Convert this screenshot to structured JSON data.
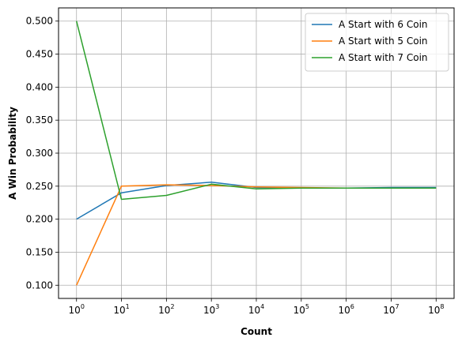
{
  "chart_data": {
    "type": "line",
    "title": "",
    "xlabel": "Count",
    "ylabel": "A Win Probability",
    "x_scale": "log",
    "x": [
      1,
      10,
      100,
      1000,
      10000,
      100000,
      1000000,
      10000000,
      100000000
    ],
    "x_tick_labels": [
      {
        "base": "10",
        "exp": "0"
      },
      {
        "base": "10",
        "exp": "1"
      },
      {
        "base": "10",
        "exp": "2"
      },
      {
        "base": "10",
        "exp": "3"
      },
      {
        "base": "10",
        "exp": "4"
      },
      {
        "base": "10",
        "exp": "5"
      },
      {
        "base": "10",
        "exp": "6"
      },
      {
        "base": "10",
        "exp": "7"
      },
      {
        "base": "10",
        "exp": "8"
      }
    ],
    "ylim": [
      0.08,
      0.52
    ],
    "y_ticks": [
      0.1,
      0.15,
      0.2,
      0.25,
      0.3,
      0.35,
      0.4,
      0.45,
      0.5
    ],
    "y_tick_labels": [
      "0.100",
      "0.150",
      "0.200",
      "0.250",
      "0.300",
      "0.350",
      "0.400",
      "0.450",
      "0.500"
    ],
    "grid": true,
    "legend_position": "top-right",
    "series": [
      {
        "name": "A Start with 6 Coin",
        "color": "#1f77b4",
        "values": [
          0.2,
          0.24,
          0.251,
          0.256,
          0.248,
          0.247,
          0.247,
          0.248,
          0.248
        ]
      },
      {
        "name": "A Start with 5 Coin",
        "color": "#ff7f0e",
        "values": [
          0.1,
          0.25,
          0.252,
          0.251,
          0.249,
          0.248,
          0.247,
          0.247,
          0.247
        ]
      },
      {
        "name": "A Start with 7 Coin",
        "color": "#2ca02c",
        "values": [
          0.5,
          0.23,
          0.236,
          0.253,
          0.246,
          0.247,
          0.247,
          0.247,
          0.247
        ]
      }
    ]
  }
}
